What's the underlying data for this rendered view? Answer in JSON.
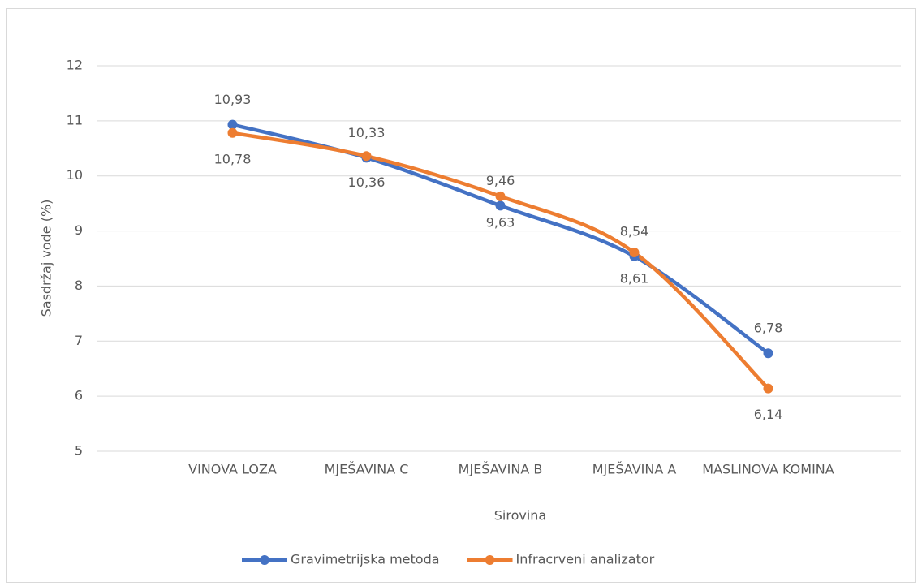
{
  "chart_data": {
    "type": "line",
    "x_label": "Sirovina",
    "y_label": "Sasdržaj vode (%)",
    "categories": [
      "VINOVA LOZA",
      "MJEŠAVINA C",
      "MJEŠAVINA B",
      "MJEŠAVINA A",
      "MASLINOVA KOMINA"
    ],
    "series": [
      {
        "name": "Gravimetrijska metoda",
        "color": "#4472c4",
        "values": [
          10.93,
          10.33,
          9.46,
          8.54,
          6.78
        ],
        "value_labels": [
          "10,93",
          "10,33",
          "9,46",
          "8,54",
          "6,78"
        ],
        "label_position": "above"
      },
      {
        "name": "Infracrveni analizator",
        "color": "#ed7d31",
        "values": [
          10.78,
          10.36,
          9.63,
          8.61,
          6.14
        ],
        "value_labels": [
          "10,78",
          "10,36",
          "9,63",
          "8,61",
          "6,14"
        ],
        "label_position": "below"
      }
    ],
    "ylim": [
      5,
      12
    ],
    "yticks": [
      5,
      6,
      7,
      8,
      9,
      10,
      11,
      12
    ],
    "grid": true,
    "legend": "bottom"
  }
}
